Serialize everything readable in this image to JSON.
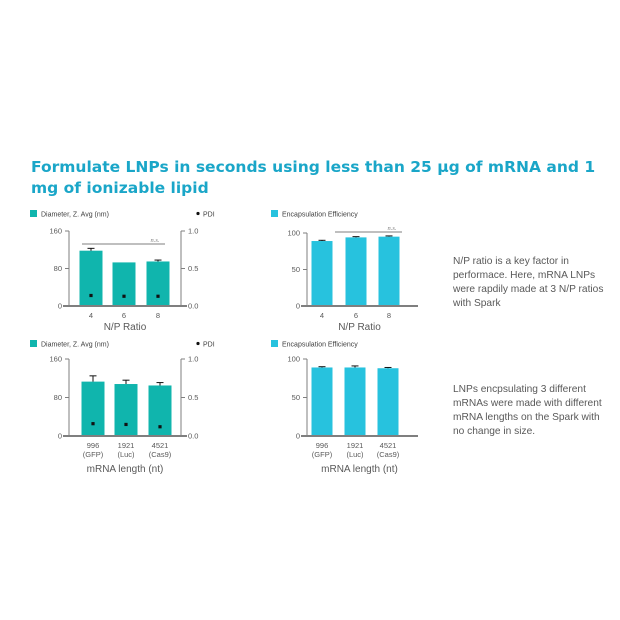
{
  "headline": "Formulate LNPs  in seconds using less than 25 µg of mRNA and 1 mg of ionizable lipid",
  "notes": {
    "np_ratio": "N/P ratio is a key factor in performace. Here, mRNA LNPs were rapdily made at 3 N/P ratios with Spark",
    "mrna_length": "LNPs encpsulating 3 different mRNAs were made with different mRNA lengths on the Spark with no change in size."
  },
  "colors": {
    "diameter_bar": "#10b5ad",
    "ee_bar": "#27c2de",
    "pdi_marker": "#111111",
    "axis": "#7f7f7f",
    "headline": "#1aa6c8"
  },
  "chart_data": [
    {
      "type": "bar",
      "id": "np-diameter",
      "categories": [
        "4",
        "6",
        "8"
      ],
      "series": [
        {
          "name": "Diameter, Z. Avg (nm)",
          "axis": "left",
          "kind": "bar",
          "values": [
            118,
            93,
            95
          ],
          "errors": [
            5,
            0,
            3
          ]
        },
        {
          "name": "PDI",
          "axis": "right",
          "kind": "scatter",
          "values": [
            0.14,
            0.13,
            0.13
          ]
        }
      ],
      "xlabel": "N/P Ratio",
      "ylim": [
        0,
        160
      ],
      "yticks": [
        0,
        80,
        160
      ],
      "y2lim": [
        0,
        1.0
      ],
      "y2ticks": [
        "0.0",
        "0.5",
        "1.0"
      ],
      "annotation": "n.s."
    },
    {
      "type": "bar",
      "id": "np-ee",
      "categories": [
        "4",
        "6",
        "8"
      ],
      "series": [
        {
          "name": "Encapsulation Efficiency",
          "axis": "left",
          "kind": "bar",
          "values": [
            89,
            94,
            95
          ],
          "errors": [
            1,
            1,
            1
          ]
        }
      ],
      "xlabel": "N/P Ratio",
      "ylim": [
        0,
        100
      ],
      "yticks": [
        0,
        50,
        100
      ],
      "annotation": "n.s."
    },
    {
      "type": "bar",
      "id": "len-diameter",
      "categories": [
        "996\n(GFP)",
        "1921\n(Luc)",
        "4521\n(Cas9)"
      ],
      "series": [
        {
          "name": "Diameter, Z. Avg (nm)",
          "axis": "left",
          "kind": "bar",
          "values": [
            113,
            108,
            105
          ],
          "errors": [
            12,
            8,
            6
          ]
        },
        {
          "name": "PDI",
          "axis": "right",
          "kind": "scatter",
          "values": [
            0.16,
            0.15,
            0.12
          ]
        }
      ],
      "xlabel": "mRNA length (nt)",
      "ylim": [
        0,
        160
      ],
      "yticks": [
        0,
        80,
        160
      ],
      "y2lim": [
        0,
        1.0
      ],
      "y2ticks": [
        "0.0",
        "0.5",
        "1.0"
      ]
    },
    {
      "type": "bar",
      "id": "len-ee",
      "categories": [
        "996\n(GFP)",
        "1921\n(Luc)",
        "4521\n(Cas9)"
      ],
      "series": [
        {
          "name": "Encapsulation Efficiency",
          "axis": "left",
          "kind": "bar",
          "values": [
            89,
            89,
            88
          ],
          "errors": [
            1,
            2,
            1
          ]
        }
      ],
      "xlabel": "mRNA length (nt)",
      "ylim": [
        0,
        100
      ],
      "yticks": [
        0,
        50,
        100
      ]
    }
  ]
}
